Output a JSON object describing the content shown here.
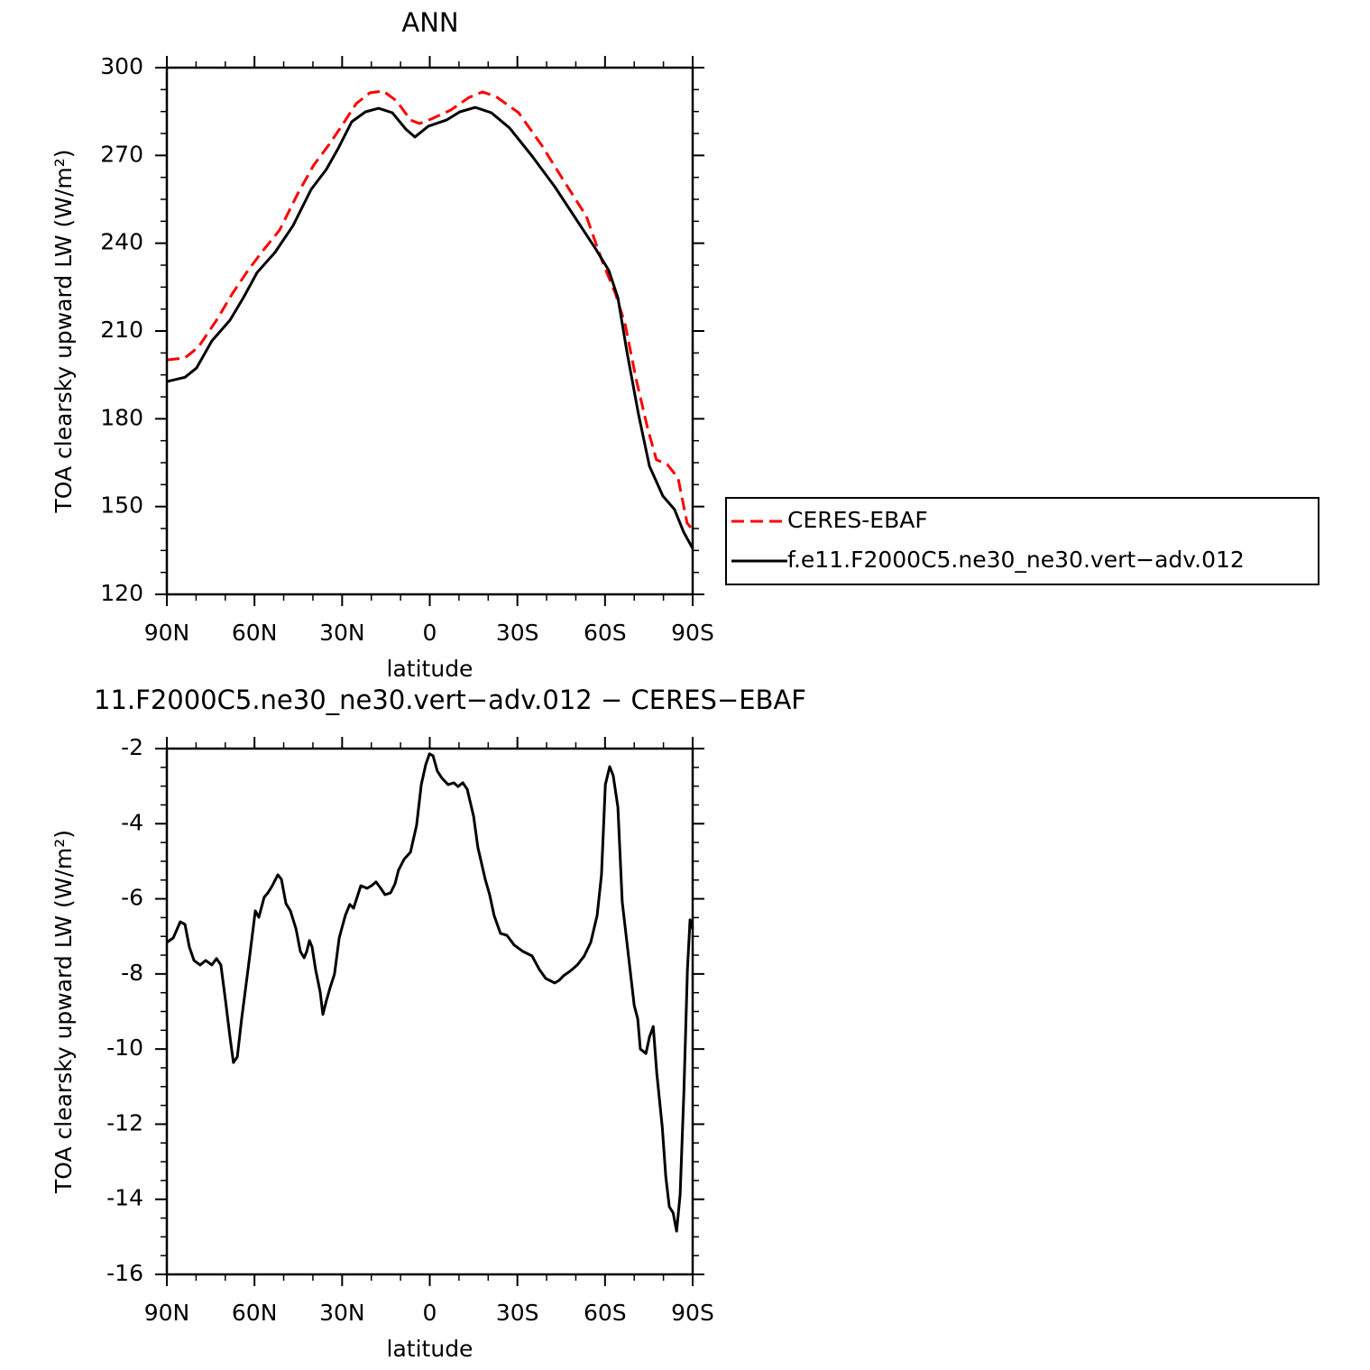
{
  "chart_data": [
    {
      "type": "line",
      "title": "ANN",
      "xlabel": "latitude",
      "ylabel": "TOA clearsky upward LW (W/m²)",
      "xlim": [
        90,
        -90
      ],
      "xticks": [
        {
          "value": 90,
          "label": "90N"
        },
        {
          "value": 60,
          "label": "60N"
        },
        {
          "value": 30,
          "label": "30N"
        },
        0,
        {
          "value": -30,
          "label": "30S"
        },
        {
          "value": -60,
          "label": "60S"
        },
        {
          "value": -90,
          "label": "90S"
        }
      ],
      "ylim": [
        120,
        300
      ],
      "yticks": [
        120,
        150,
        180,
        210,
        240,
        270,
        300
      ],
      "legend": "right",
      "series": [
        {
          "name": "CERES-EBAF",
          "color": "#ff0000",
          "dashed": true,
          "x": [
            90,
            83.8,
            79.2,
            73,
            67.5,
            62.2,
            57.6,
            51.4,
            45.2,
            39.7,
            34.4,
            29.8,
            25.2,
            20.5,
            15.9,
            11.3,
            6.6,
            3.5,
            -1.1,
            -7.2,
            -13.4,
            -18.1,
            -22.7,
            -30.4,
            -38.1,
            -45.8,
            -53.6,
            -59.1,
            -63.5,
            -66.9,
            -70.6,
            -74.6,
            -77.6,
            -81.3,
            -85,
            -88.1,
            -90
          ],
          "values": [
            200.1,
            200.8,
            204.5,
            213.7,
            222.9,
            230.7,
            236.8,
            244.5,
            256.9,
            266.7,
            273.8,
            280.6,
            287.7,
            291.4,
            292,
            288.6,
            282.1,
            280.9,
            282.7,
            285.5,
            289.8,
            291.7,
            290.1,
            284.6,
            273.8,
            261.5,
            249.2,
            233.7,
            222.9,
            212.2,
            193.7,
            176.7,
            166,
            164.4,
            159.8,
            144.4,
            142
          ]
        },
        {
          "name": "f.e11.F2000C5.ne30_ne30.vert−adv.012",
          "color": "#000000",
          "dashed": false,
          "x": [
            90,
            83.8,
            79.8,
            74.6,
            68.4,
            63.8,
            59.1,
            53,
            46.8,
            40.6,
            35.4,
            31.4,
            26.7,
            22,
            17.5,
            12.8,
            8.2,
            5.1,
            0.5,
            -5.7,
            -10.3,
            -15.6,
            -21.1,
            -27.3,
            -35,
            -42.8,
            -50.5,
            -56.6,
            -61.3,
            -64.4,
            -67.5,
            -71.5,
            -75.2,
            -79.8,
            -83.8,
            -86.9,
            -90
          ],
          "values": [
            192.7,
            194.2,
            197.4,
            206.6,
            213.7,
            221.4,
            230,
            236.8,
            246,
            258.4,
            265.2,
            272.3,
            281.5,
            284.9,
            286.1,
            284.6,
            279,
            276.3,
            280,
            282.1,
            284.9,
            286.4,
            284.6,
            279.4,
            269.8,
            259.3,
            247.6,
            238.4,
            230.7,
            221.4,
            202.9,
            181.3,
            163.8,
            153.6,
            149,
            141.3,
            135.7
          ]
        }
      ]
    },
    {
      "type": "line",
      "title": "11.F2000C5.ne30_ne30.vert−adv.012 − CERES−EBAF",
      "xlabel": "latitude",
      "ylabel": "TOA clearsky upward LW (W/m²)",
      "xlim": [
        90,
        -90
      ],
      "xticks": [
        {
          "value": 90,
          "label": "90N"
        },
        {
          "value": 60,
          "label": "60N"
        },
        {
          "value": 30,
          "label": "30N"
        },
        0,
        {
          "value": -30,
          "label": "30S"
        },
        {
          "value": -60,
          "label": "60S"
        },
        {
          "value": -90,
          "label": "90S"
        }
      ],
      "ylim": [
        -16,
        -2
      ],
      "yticks": [
        -16,
        -14,
        -12,
        -10,
        -8,
        -6,
        -4,
        -2
      ],
      "x": [
        90,
        87.8,
        85.4,
        83.8,
        82.3,
        80.7,
        78.6,
        76.7,
        74.6,
        73,
        71.5,
        69.9,
        68.4,
        67.2,
        65.9,
        64.4,
        62.2,
        59.7,
        58.5,
        56.7,
        55.4,
        53.9,
        52,
        50.8,
        49.2,
        47.7,
        45.8,
        44.3,
        43,
        42.1,
        41.2,
        40.3,
        39.1,
        37.5,
        36.6,
        35.4,
        34.1,
        32.6,
        31,
        28.9,
        27.4,
        26.1,
        23.6,
        21.5,
        19.9,
        18.4,
        16.8,
        15.3,
        13.4,
        11.9,
        10.7,
        8.8,
        6.6,
        4.5,
        2.9,
        1.4,
        0.1,
        -1.1,
        -2.6,
        -4.2,
        -6.3,
        -8.2,
        -9.7,
        -11.3,
        -12.8,
        -15,
        -16.5,
        -19,
        -20.5,
        -22,
        -24.2,
        -26.4,
        -28.9,
        -31.9,
        -35,
        -37.5,
        -39.7,
        -42.8,
        -44.3,
        -45.8,
        -48,
        -50.5,
        -52.9,
        -55.1,
        -57.3,
        -58.8,
        -60.1,
        -61.6,
        -62.8,
        -64.4,
        -65.9,
        -68.4,
        -70,
        -71.2,
        -72.1,
        -74,
        -75.2,
        -76.5,
        -77.7,
        -79.6,
        -80.8,
        -82,
        -83.3,
        -84.5,
        -85.7,
        -87,
        -88.2,
        -89.1,
        -90
      ],
      "series": [
        {
          "color": "#000000",
          "dashed": false,
          "values": [
            -7.16,
            -7.04,
            -6.61,
            -6.68,
            -7.28,
            -7.64,
            -7.76,
            -7.64,
            -7.76,
            -7.59,
            -7.76,
            -8.72,
            -9.68,
            -10.36,
            -10.21,
            -9.2,
            -7.88,
            -6.32,
            -6.49,
            -5.96,
            -5.84,
            -5.65,
            -5.36,
            -5.48,
            -6.13,
            -6.32,
            -6.8,
            -7.4,
            -7.57,
            -7.4,
            -7.11,
            -7.28,
            -7.88,
            -8.48,
            -9.08,
            -8.72,
            -8.36,
            -8,
            -7.04,
            -6.44,
            -6.15,
            -6.25,
            -5.65,
            -5.72,
            -5.65,
            -5.55,
            -5.72,
            -5.89,
            -5.84,
            -5.6,
            -5.24,
            -4.95,
            -4.76,
            -4.04,
            -2.96,
            -2.43,
            -2.14,
            -2.19,
            -2.6,
            -2.79,
            -2.96,
            -2.91,
            -3.01,
            -2.91,
            -3.08,
            -3.8,
            -4.64,
            -5.48,
            -5.89,
            -6.44,
            -6.92,
            -6.97,
            -7.23,
            -7.4,
            -7.52,
            -7.88,
            -8.12,
            -8.24,
            -8.17,
            -8.05,
            -7.93,
            -7.76,
            -7.52,
            -7.16,
            -6.44,
            -5.36,
            -2.96,
            -2.48,
            -2.72,
            -3.56,
            -6.08,
            -7.76,
            -8.84,
            -9.2,
            -10,
            -10.12,
            -9.68,
            -9.4,
            -10.64,
            -12.08,
            -13.4,
            -14.2,
            -14.36,
            -14.85,
            -13.88,
            -11.12,
            -7.88,
            -6.56,
            -6.8
          ]
        }
      ]
    }
  ]
}
